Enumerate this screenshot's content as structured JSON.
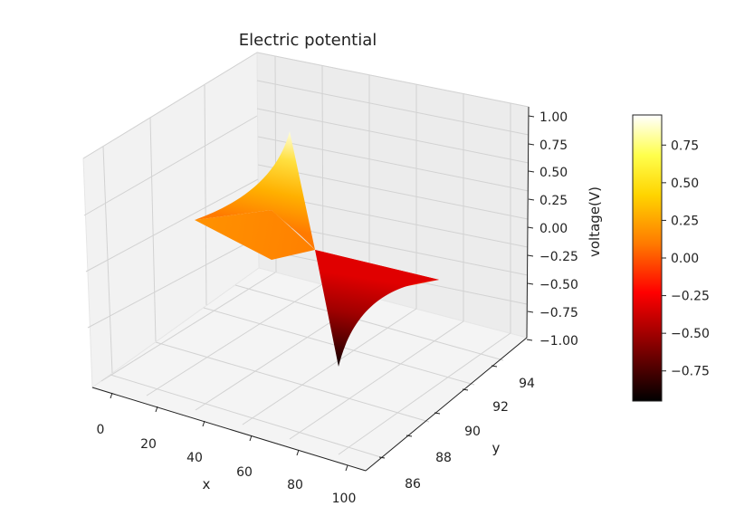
{
  "chart_data": {
    "type": "surface3d",
    "title": "Electric potential",
    "xlabel": "x",
    "ylabel": "y",
    "zlabel": "voltage(V)",
    "xlim": [
      -10,
      110
    ],
    "ylim": [
      85,
      95
    ],
    "zlim": [
      -1.0,
      1.0
    ],
    "x_ticks": [
      "0",
      "20",
      "40",
      "60",
      "80",
      "100"
    ],
    "y_ticks": [
      "86",
      "88",
      "90",
      "92",
      "94"
    ],
    "z_ticks": [
      "1.00",
      "0.75",
      "0.50",
      "0.25",
      "0.00",
      "−0.25",
      "−0.50",
      "−0.75",
      "−1.00"
    ],
    "colormap": "hot",
    "colorbar": {
      "range": [
        -0.95,
        0.95
      ],
      "ticks": [
        0.75,
        0.5,
        0.25,
        0.0,
        -0.25,
        -0.5,
        -0.75
      ],
      "tick_labels": [
        "0.75",
        "0.50",
        "0.25",
        "0.00",
        "−0.25",
        "−0.50",
        "−0.75"
      ]
    },
    "surface": {
      "description": "antisymmetric potential sheet spanning y 87-93, peaking near +0.95 at one end and -0.95 at the other",
      "peak_value": 0.95,
      "trough_value": -0.95
    }
  },
  "colors": {
    "pane": "#f2f2f2",
    "grid": "#d4d4d4",
    "axis_line": "#222222",
    "cmap_stops": [
      "#000000",
      "#8a0000",
      "#ff0000",
      "#ff7a00",
      "#ffd400",
      "#ffff4d",
      "#ffffff"
    ]
  }
}
